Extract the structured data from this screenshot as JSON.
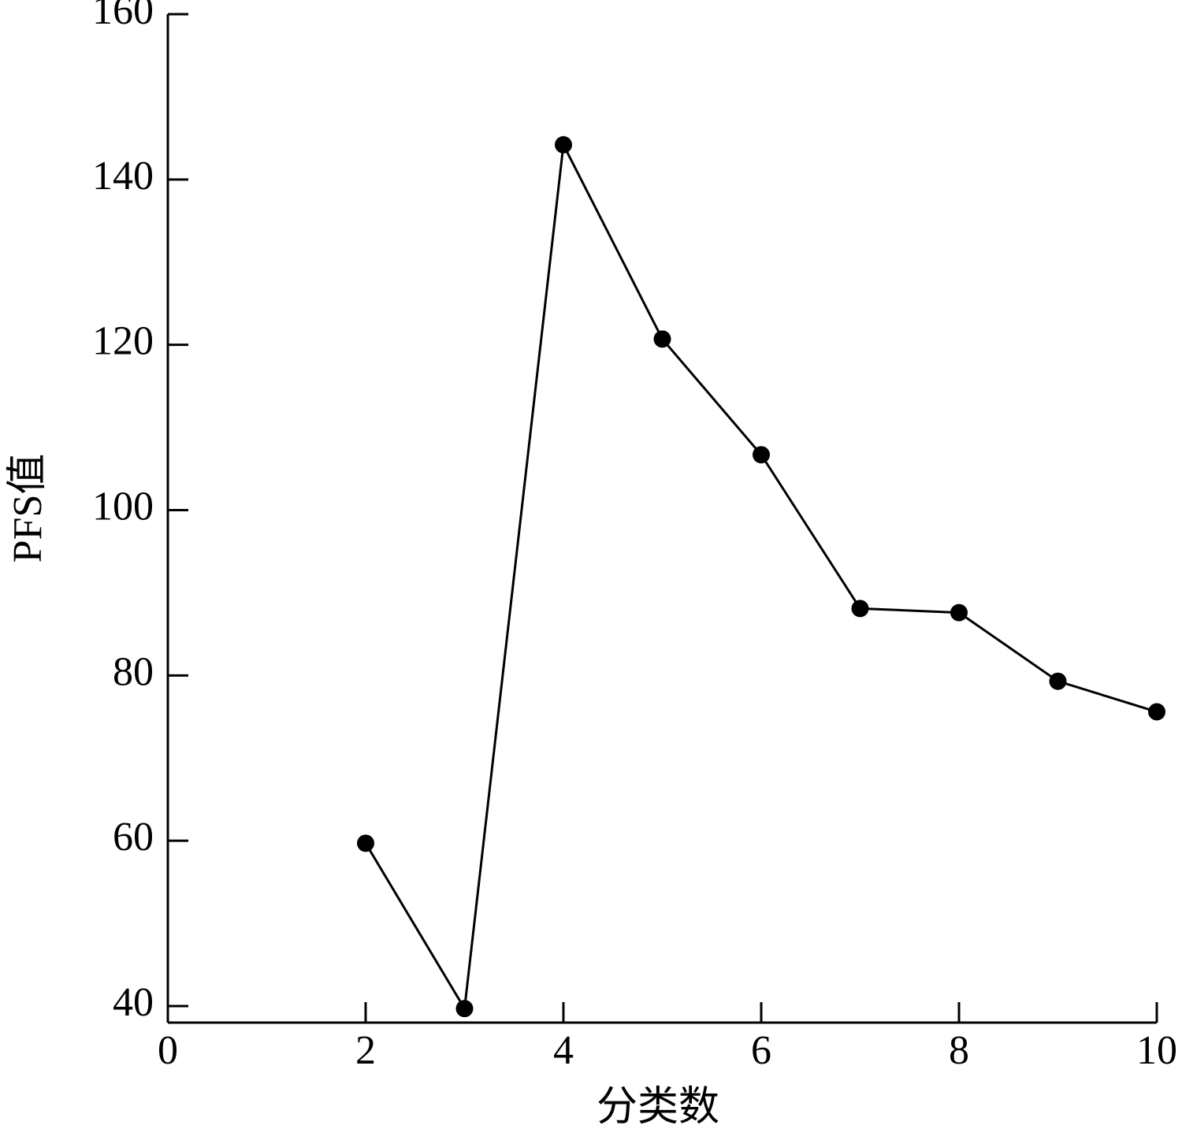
{
  "chart_data": {
    "type": "line",
    "x_label": "分类数",
    "y_label": "PFS值",
    "x": [
      2,
      3,
      4,
      5,
      6,
      7,
      8,
      9,
      10
    ],
    "series": [
      {
        "color": "#000000",
        "values": [
          59.7,
          39.7,
          144.2,
          120.7,
          106.7,
          88.1,
          87.6,
          79.3,
          75.6
        ]
      }
    ],
    "xlim": [
      0,
      10
    ],
    "xticks": [
      0,
      2,
      4,
      6,
      8,
      10
    ],
    "ylim": [
      38,
      160
    ],
    "yticks": [
      40,
      60,
      80,
      100,
      120,
      140,
      160
    ],
    "grid": false
  }
}
